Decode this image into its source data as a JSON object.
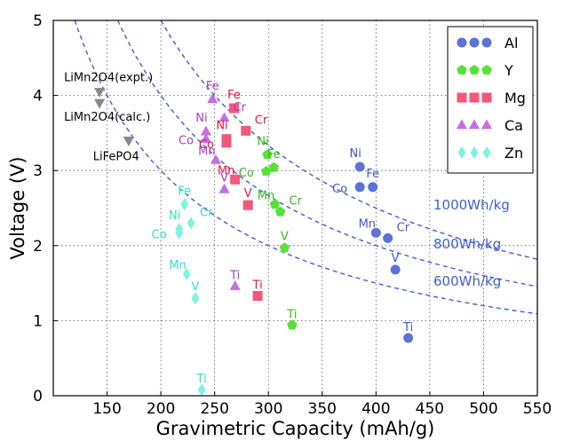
{
  "chart_data": {
    "type": "scatter",
    "xlabel": "Gravimetric Capacity (mAh/g)",
    "ylabel": "Voltage (V)",
    "xlim": [
      100,
      550
    ],
    "ylim": [
      0,
      5
    ],
    "x_ticks": [
      "150",
      "200",
      "250",
      "300",
      "350",
      "400",
      "450",
      "500",
      "550"
    ],
    "y_ticks": [
      "0",
      "1",
      "2",
      "3",
      "4",
      "5"
    ],
    "grid": "dotted",
    "legend_position": "top-right",
    "series": [
      {
        "name": "Al",
        "marker": "circle",
        "color": "#5b73d6",
        "text_color": "#3f58c8",
        "points": [
          {
            "label": "Ni",
            "x": 385,
            "y": 3.05
          },
          {
            "label": "Fe",
            "x": 397,
            "y": 2.78
          },
          {
            "label": "Co",
            "x": 385,
            "y": 2.78
          },
          {
            "label": "Mn",
            "x": 400,
            "y": 2.17
          },
          {
            "label": "Cr",
            "x": 411,
            "y": 2.1
          },
          {
            "label": "V",
            "x": 418,
            "y": 1.68
          },
          {
            "label": "Ti",
            "x": 430,
            "y": 0.77
          }
        ]
      },
      {
        "name": "Y",
        "marker": "pentagon",
        "color": "#58e03a",
        "text_color": "#35b81e",
        "points": [
          {
            "label": "Ni",
            "x": 299,
            "y": 3.21
          },
          {
            "label": "Fe",
            "x": 305,
            "y": 3.04
          },
          {
            "label": "Co",
            "x": 298,
            "y": 2.99
          },
          {
            "label": "Mn",
            "x": 306,
            "y": 2.55
          },
          {
            "label": "Cr",
            "x": 311,
            "y": 2.45
          },
          {
            "label": "V",
            "x": 315,
            "y": 1.97
          },
          {
            "label": "Ti",
            "x": 322,
            "y": 0.94
          }
        ]
      },
      {
        "name": "Mg",
        "marker": "square",
        "color": "#f2587a",
        "text_color": "#e5163a",
        "points": [
          {
            "label": "Fe",
            "x": 268,
            "y": 3.83
          },
          {
            "label": "Cr",
            "x": 279,
            "y": 3.53
          },
          {
            "label": "Ni",
            "x": 261,
            "y": 3.42
          },
          {
            "label": "Co",
            "x": 261,
            "y": 3.37
          },
          {
            "label": "Mn",
            "x": 269,
            "y": 2.88
          },
          {
            "label": "V",
            "x": 281,
            "y": 2.54
          },
          {
            "label": "Ti",
            "x": 290,
            "y": 1.33
          }
        ]
      },
      {
        "name": "Ca",
        "marker": "triangle",
        "color": "#c56ee6",
        "text_color": "#a43ed1",
        "points": [
          {
            "label": "Fe",
            "x": 248,
            "y": 3.95
          },
          {
            "label": "Cr",
            "x": 259,
            "y": 3.7
          },
          {
            "label": "Ni",
            "x": 242,
            "y": 3.52
          },
          {
            "label": "Co",
            "x": 242,
            "y": 3.42
          },
          {
            "label": "Mn",
            "x": 251,
            "y": 3.14
          },
          {
            "label": "V",
            "x": 259,
            "y": 2.75
          },
          {
            "label": "Ti",
            "x": 269,
            "y": 1.46
          }
        ]
      },
      {
        "name": "Zn",
        "marker": "diamond",
        "color": "#7ef2e0",
        "text_color": "#36dcc4",
        "points": [
          {
            "label": "Fe",
            "x": 222,
            "y": 2.55
          },
          {
            "label": "Cr",
            "x": 228,
            "y": 2.3
          },
          {
            "label": "Ni",
            "x": 217,
            "y": 2.22
          },
          {
            "label": "Co",
            "x": 217,
            "y": 2.17
          },
          {
            "label": "Mn",
            "x": 224,
            "y": 1.62
          },
          {
            "label": "V",
            "x": 232,
            "y": 1.3
          },
          {
            "label": "Ti",
            "x": 238,
            "y": 0.08
          }
        ]
      }
    ],
    "reference_points": {
      "color": "#888888",
      "marker": "triangle-down",
      "points": [
        {
          "label": "LiMn2O4(expt.)",
          "x": 143,
          "y": 4.05
        },
        {
          "label": "LiMn2O4(calc.)",
          "x": 143,
          "y": 3.9
        },
        {
          "label": "LiFePO4",
          "x": 170,
          "y": 3.4
        }
      ]
    },
    "energy_curves": [
      {
        "label": "1000Wh/kg",
        "energy": 1000
      },
      {
        "label": "800Wh/kg",
        "energy": 800
      },
      {
        "label": "600Wh/kg",
        "energy": 600
      }
    ],
    "curve_color": "#3e5fd6"
  }
}
